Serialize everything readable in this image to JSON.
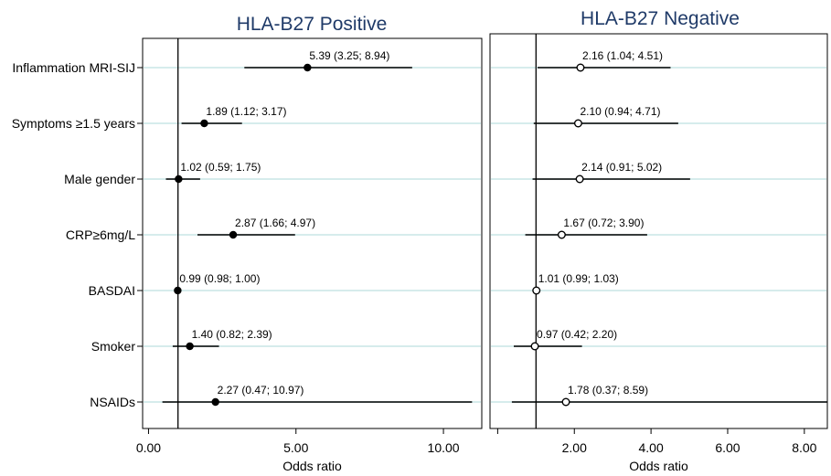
{
  "chart_data": [
    {
      "type": "forest",
      "title": "HLA-B27 Positive",
      "xlabel": "Odds ratio",
      "xlim": [
        -0.2,
        11.3
      ],
      "xticks": [
        {
          "value": 0,
          "label": "0.00"
        },
        {
          "value": 5,
          "label": "5.00"
        },
        {
          "value": 10,
          "label": "10.00"
        }
      ],
      "reference_line": 1,
      "marker": "filled",
      "categories": [
        "Inflammation MRI-SIJ",
        "Symptoms ≥1.5 years",
        "Male gender",
        "CRP≥6mg/L",
        "BASDAI",
        "Smoker",
        "NSAIDs"
      ],
      "points": [
        {
          "or": 5.39,
          "lo": 3.25,
          "hi": 8.94,
          "label": "5.39 (3.25; 8.94)"
        },
        {
          "or": 1.89,
          "lo": 1.12,
          "hi": 3.17,
          "label": "1.89 (1.12; 3.17)"
        },
        {
          "or": 1.02,
          "lo": 0.59,
          "hi": 1.75,
          "label": "1.02 (0.59; 1.75)"
        },
        {
          "or": 2.87,
          "lo": 1.66,
          "hi": 4.97,
          "label": "2.87 (1.66; 4.97)"
        },
        {
          "or": 0.99,
          "lo": 0.98,
          "hi": 1.0,
          "label": "0.99 (0.98; 1.00)"
        },
        {
          "or": 1.4,
          "lo": 0.82,
          "hi": 2.39,
          "label": "1.40 (0.82; 2.39)"
        },
        {
          "or": 2.27,
          "lo": 0.47,
          "hi": 10.97,
          "label": "2.27 (0.47; 10.97)"
        }
      ]
    },
    {
      "type": "forest",
      "title": "HLA-B27 Negative",
      "xlabel": "Odds ratio",
      "xlim": [
        -0.2,
        8.6
      ],
      "xticks": [
        {
          "value": 0,
          "label": ""
        },
        {
          "value": 2,
          "label": "2.00"
        },
        {
          "value": 4,
          "label": "4.00"
        },
        {
          "value": 6,
          "label": "6.00"
        },
        {
          "value": 8,
          "label": "8.00"
        }
      ],
      "reference_line": 1,
      "marker": "hollow",
      "categories": [
        "Inflammation MRI-SIJ",
        "Symptoms ≥1.5 years",
        "Male gender",
        "CRP≥6mg/L",
        "BASDAI",
        "Smoker",
        "NSAIDs"
      ],
      "points": [
        {
          "or": 2.16,
          "lo": 1.04,
          "hi": 4.51,
          "label": "2.16 (1.04; 4.51)"
        },
        {
          "or": 2.1,
          "lo": 0.94,
          "hi": 4.71,
          "label": "2.10 (0.94; 4.71)"
        },
        {
          "or": 2.14,
          "lo": 0.91,
          "hi": 5.02,
          "label": "2.14 (0.91; 5.02)"
        },
        {
          "or": 1.67,
          "lo": 0.72,
          "hi": 3.9,
          "label": "1.67 (0.72; 3.90)"
        },
        {
          "or": 1.01,
          "lo": 0.99,
          "hi": 1.03,
          "label": "1.01 (0.99; 1.03)"
        },
        {
          "or": 0.97,
          "lo": 0.42,
          "hi": 2.2,
          "label": "0.97 (0.42; 2.20)"
        },
        {
          "or": 1.78,
          "lo": 0.37,
          "hi": 8.59,
          "label": "1.78 (0.37; 8.59)"
        }
      ]
    }
  ],
  "colors": {
    "title": "#1f3a68",
    "gridline": "#d6ecec",
    "frame": "#000000",
    "marks": "#000000"
  }
}
